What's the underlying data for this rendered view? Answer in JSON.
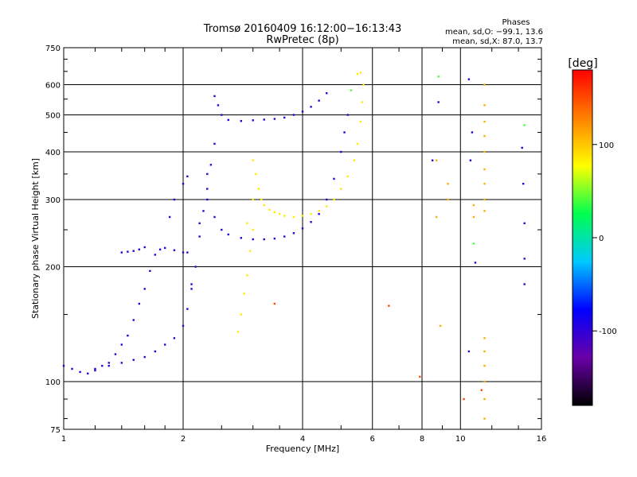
{
  "chart_data": {
    "type": "scatter",
    "title": "Tromsø 20160409 16:12:00−16:13:43",
    "subtitle": "RwPretec (8p)",
    "xlabel": "Frequency [MHz]",
    "ylabel": "Stationary phase Virtual Height [km]",
    "x_scale": "log",
    "y_scale": "log",
    "xlim": [
      1,
      16
    ],
    "ylim": [
      75,
      750
    ],
    "x_ticks": [
      1,
      2,
      4,
      6,
      8,
      10,
      16
    ],
    "y_ticks": [
      75,
      100,
      200,
      300,
      400,
      500,
      600,
      750
    ],
    "grid": true,
    "phases_box": {
      "header": "Phases",
      "line_o": "mean, sd,O: −99.1, 13.6",
      "line_x": "mean, sd,X:  87.0, 13.7"
    },
    "colorbar": {
      "label": "[deg]",
      "range": [
        -180,
        180
      ],
      "ticks": [
        100,
        0,
        -100
      ],
      "colors": [
        "#000000",
        "#6a00a8",
        "#0000ff",
        "#00c8ff",
        "#00ff50",
        "#ffff00",
        "#ff8000",
        "#ff0000"
      ]
    },
    "series": [
      {
        "phase_deg": -100,
        "points": [
          [
            1.0,
            110
          ],
          [
            1.05,
            108
          ],
          [
            1.1,
            106
          ],
          [
            1.15,
            105
          ],
          [
            1.2,
            107
          ],
          [
            1.25,
            110
          ],
          [
            1.3,
            112
          ],
          [
            1.35,
            118
          ],
          [
            1.4,
            125
          ],
          [
            1.45,
            132
          ],
          [
            1.5,
            145
          ],
          [
            1.55,
            160
          ],
          [
            1.6,
            175
          ],
          [
            1.65,
            195
          ],
          [
            1.7,
            215
          ],
          [
            1.75,
            222
          ],
          [
            1.8,
            224
          ],
          [
            1.9,
            221
          ],
          [
            2.0,
            218
          ],
          [
            2.05,
            218
          ],
          [
            1.4,
            218
          ],
          [
            1.45,
            219
          ],
          [
            1.5,
            220
          ],
          [
            1.55,
            222
          ],
          [
            1.6,
            225
          ],
          [
            1.2,
            108
          ],
          [
            1.3,
            110
          ],
          [
            1.4,
            112
          ],
          [
            1.5,
            114
          ],
          [
            1.6,
            116
          ],
          [
            1.7,
            120
          ],
          [
            1.8,
            125
          ],
          [
            1.9,
            130
          ],
          [
            2.0,
            140
          ],
          [
            2.05,
            155
          ],
          [
            2.1,
            175
          ],
          [
            2.15,
            200
          ],
          [
            2.2,
            240
          ],
          [
            2.25,
            280
          ],
          [
            2.3,
            320
          ],
          [
            2.35,
            370
          ],
          [
            2.4,
            420
          ],
          [
            2.1,
            180
          ],
          [
            2.2,
            260
          ],
          [
            2.3,
            350
          ],
          [
            2.4,
            560
          ],
          [
            2.45,
            530
          ],
          [
            2.5,
            500
          ],
          [
            2.6,
            485
          ],
          [
            2.8,
            482
          ],
          [
            3.0,
            484
          ],
          [
            3.2,
            486
          ],
          [
            3.4,
            488
          ],
          [
            3.6,
            492
          ],
          [
            3.8,
            500
          ],
          [
            4.0,
            510
          ],
          [
            4.2,
            525
          ],
          [
            4.4,
            545
          ],
          [
            4.6,
            570
          ],
          [
            2.3,
            300
          ],
          [
            2.4,
            270
          ],
          [
            2.5,
            250
          ],
          [
            2.6,
            243
          ],
          [
            2.8,
            238
          ],
          [
            3.0,
            236
          ],
          [
            3.2,
            236
          ],
          [
            3.4,
            237
          ],
          [
            3.6,
            240
          ],
          [
            3.8,
            245
          ],
          [
            4.0,
            252
          ],
          [
            4.2,
            262
          ],
          [
            4.4,
            275
          ],
          [
            4.6,
            300
          ],
          [
            4.8,
            340
          ],
          [
            5.0,
            400
          ],
          [
            5.1,
            450
          ],
          [
            5.2,
            500
          ],
          [
            1.85,
            270
          ],
          [
            1.9,
            300
          ],
          [
            2.0,
            330
          ],
          [
            2.05,
            345
          ]
        ]
      },
      {
        "phase_deg": 85,
        "points": [
          [
            3.0,
            380
          ],
          [
            3.05,
            350
          ],
          [
            3.1,
            320
          ],
          [
            3.15,
            300
          ],
          [
            3.2,
            290
          ],
          [
            3.3,
            282
          ],
          [
            3.4,
            278
          ],
          [
            3.5,
            275
          ],
          [
            3.6,
            272
          ],
          [
            3.8,
            270
          ],
          [
            4.0,
            272
          ],
          [
            4.2,
            275
          ],
          [
            4.4,
            280
          ],
          [
            4.6,
            288
          ],
          [
            4.8,
            300
          ],
          [
            5.0,
            320
          ],
          [
            5.2,
            345
          ],
          [
            5.4,
            380
          ],
          [
            5.5,
            420
          ],
          [
            5.6,
            480
          ],
          [
            5.65,
            540
          ],
          [
            5.7,
            600
          ],
          [
            5.5,
            640
          ],
          [
            5.6,
            645
          ],
          [
            3.0,
            250
          ],
          [
            2.95,
            220
          ],
          [
            2.9,
            190
          ],
          [
            2.85,
            170
          ],
          [
            2.8,
            150
          ],
          [
            2.75,
            135
          ],
          [
            2.9,
            260
          ],
          [
            3.0,
            300
          ]
        ]
      },
      {
        "phase_deg": 110,
        "points": [
          [
            11.5,
            600
          ],
          [
            11.5,
            530
          ],
          [
            11.5,
            480
          ],
          [
            11.5,
            440
          ],
          [
            11.5,
            400
          ],
          [
            11.5,
            360
          ],
          [
            11.5,
            330
          ],
          [
            11.5,
            300
          ],
          [
            11.5,
            280
          ],
          [
            11.5,
            130
          ],
          [
            11.5,
            120
          ],
          [
            11.5,
            110
          ],
          [
            11.5,
            100
          ],
          [
            11.5,
            90
          ],
          [
            11.5,
            80
          ],
          [
            10.8,
            290
          ],
          [
            10.8,
            270
          ],
          [
            8.7,
            380
          ],
          [
            8.7,
            270
          ],
          [
            8.9,
            140
          ],
          [
            9.3,
            300
          ],
          [
            9.3,
            330
          ]
        ]
      },
      {
        "phase_deg": -100,
        "points": [
          [
            10.5,
            620
          ],
          [
            10.7,
            450
          ],
          [
            10.6,
            380
          ],
          [
            10.9,
            205
          ],
          [
            10.5,
            120
          ],
          [
            14.5,
            210
          ],
          [
            14.5,
            180
          ],
          [
            14.5,
            260
          ],
          [
            14.4,
            330
          ],
          [
            14.3,
            410
          ],
          [
            8.8,
            540
          ],
          [
            8.5,
            380
          ]
        ]
      },
      {
        "phase_deg": 40,
        "points": [
          [
            8.8,
            630
          ],
          [
            14.5,
            470
          ],
          [
            10.8,
            230
          ],
          [
            5.3,
            580
          ]
        ]
      },
      {
        "phase_deg": 150,
        "points": [
          [
            3.4,
            160
          ],
          [
            7.9,
            103
          ],
          [
            11.3,
            95
          ],
          [
            10.2,
            90
          ],
          [
            6.6,
            158
          ]
        ]
      }
    ]
  }
}
